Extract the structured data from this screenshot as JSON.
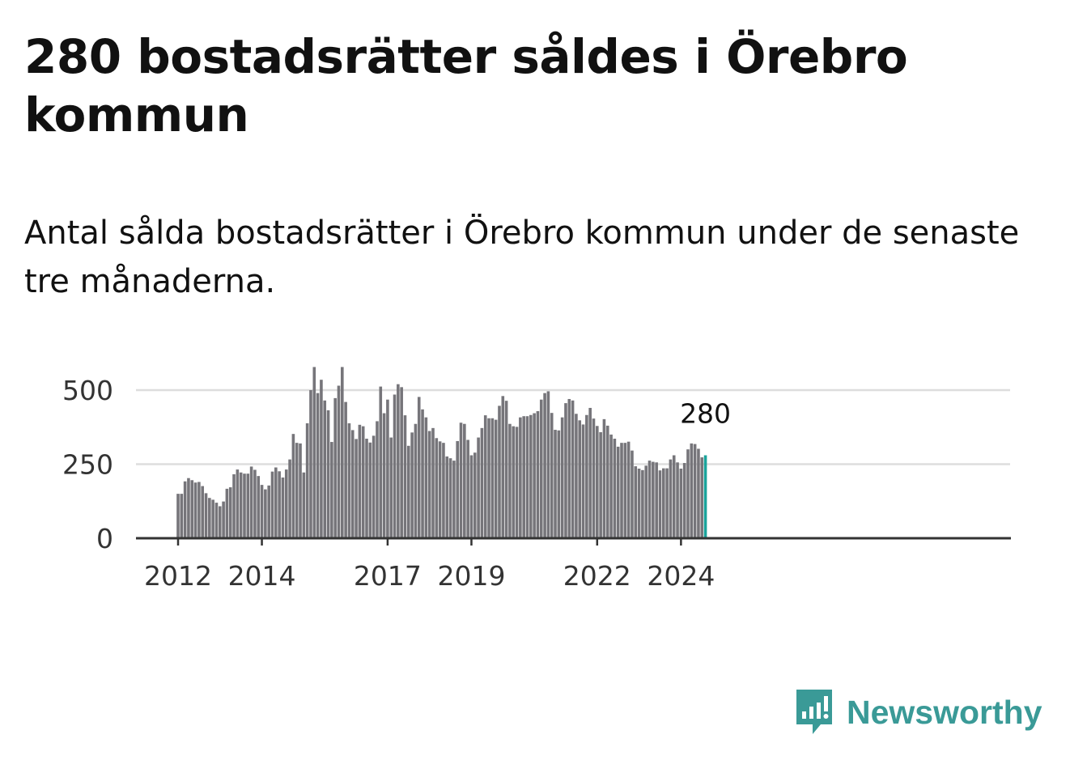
{
  "title": "280 bostadsrätter såldes i Örebro kommun",
  "subtitle": "Antal sålda bostadsrätter i Örebro kommun under de senaste tre månaderna.",
  "brand": {
    "name": "Newsworthy",
    "icon": "newsworthy-logo-icon"
  },
  "colors": {
    "bar": "#76757a",
    "highlight": "#1aa39b",
    "grid": "#dddddd",
    "axis": "#333333",
    "brand": "#3a9a97"
  },
  "chart_data": {
    "type": "bar",
    "title": "",
    "xlabel": "",
    "ylabel": "",
    "ylim": [
      0,
      580
    ],
    "yticks": [
      0,
      250,
      500
    ],
    "xtick_labels": [
      "2012",
      "2014",
      "2017",
      "2019",
      "2022",
      "2024"
    ],
    "grid": true,
    "last_value_label": "280",
    "start": "2012-01",
    "months": [
      "2012-01",
      "2012-02",
      "2012-03",
      "2012-04",
      "2012-05",
      "2012-06",
      "2012-07",
      "2012-08",
      "2012-09",
      "2012-10",
      "2012-11",
      "2012-12",
      "2013-01",
      "2013-02",
      "2013-03",
      "2013-04",
      "2013-05",
      "2013-06",
      "2013-07",
      "2013-08",
      "2013-09",
      "2013-10",
      "2013-11",
      "2013-12",
      "2014-01",
      "2014-02",
      "2014-03",
      "2014-04",
      "2014-05",
      "2014-06",
      "2014-07",
      "2014-08",
      "2014-09",
      "2014-10",
      "2014-11",
      "2014-12",
      "2015-01",
      "2015-02",
      "2015-03",
      "2015-04",
      "2015-05",
      "2015-06",
      "2015-07",
      "2015-08",
      "2015-09",
      "2015-10",
      "2015-11",
      "2015-12",
      "2016-01",
      "2016-02",
      "2016-03",
      "2016-04",
      "2016-05",
      "2016-06",
      "2016-07",
      "2016-08",
      "2016-09",
      "2016-10",
      "2016-11",
      "2016-12",
      "2017-01",
      "2017-02",
      "2017-03",
      "2017-04",
      "2017-05",
      "2017-06",
      "2017-07",
      "2017-08",
      "2017-09",
      "2017-10",
      "2017-11",
      "2017-12",
      "2018-01",
      "2018-02",
      "2018-03",
      "2018-04",
      "2018-05",
      "2018-06",
      "2018-07",
      "2018-08",
      "2018-09",
      "2018-10",
      "2018-11",
      "2018-12",
      "2019-01",
      "2019-02",
      "2019-03",
      "2019-04",
      "2019-05",
      "2019-06",
      "2019-07",
      "2019-08",
      "2019-09",
      "2019-10",
      "2019-11",
      "2019-12",
      "2020-01",
      "2020-02",
      "2020-03",
      "2020-04",
      "2020-05",
      "2020-06",
      "2020-07",
      "2020-08",
      "2020-09",
      "2020-10",
      "2020-11",
      "2020-12",
      "2021-01",
      "2021-02",
      "2021-03",
      "2021-04",
      "2021-05",
      "2021-06",
      "2021-07",
      "2021-08",
      "2021-09",
      "2021-10",
      "2021-11",
      "2021-12",
      "2022-01",
      "2022-02",
      "2022-03",
      "2022-04",
      "2022-05",
      "2022-06",
      "2022-07",
      "2022-08",
      "2022-09",
      "2022-10",
      "2022-11",
      "2022-12",
      "2023-01",
      "2023-02",
      "2023-03",
      "2023-04",
      "2023-05",
      "2023-06",
      "2023-07",
      "2023-08",
      "2023-09",
      "2023-10",
      "2023-11",
      "2023-12",
      "2024-01",
      "2024-02",
      "2024-03",
      "2024-04",
      "2024-05",
      "2024-06",
      "2024-07",
      "2024-08"
    ],
    "values": [
      150,
      150,
      192,
      203,
      196,
      188,
      190,
      176,
      152,
      136,
      130,
      120,
      108,
      124,
      167,
      172,
      216,
      232,
      222,
      218,
      218,
      242,
      231,
      210,
      180,
      165,
      178,
      225,
      239,
      226,
      205,
      232,
      266,
      352,
      322,
      320,
      222,
      388,
      500,
      578,
      490,
      535,
      465,
      432,
      325,
      473,
      515,
      578,
      460,
      388,
      365,
      335,
      383,
      378,
      336,
      323,
      346,
      395,
      512,
      422,
      468,
      340,
      485,
      520,
      510,
      415,
      312,
      357,
      386,
      477,
      435,
      408,
      362,
      372,
      338,
      327,
      322,
      276,
      270,
      262,
      328,
      390,
      386,
      332,
      280,
      289,
      340,
      372,
      415,
      405,
      405,
      400,
      447,
      480,
      464,
      386,
      378,
      376,
      408,
      412,
      412,
      416,
      422,
      429,
      468,
      490,
      496,
      423,
      366,
      364,
      408,
      456,
      470,
      465,
      420,
      398,
      384,
      416,
      440,
      404,
      379,
      358,
      402,
      380,
      350,
      336,
      309,
      322,
      322,
      326,
      296,
      243,
      235,
      230,
      245,
      262,
      258,
      256,
      229,
      236,
      236,
      266,
      280,
      256,
      235,
      254,
      300,
      320,
      318,
      302,
      273,
      280
    ]
  }
}
